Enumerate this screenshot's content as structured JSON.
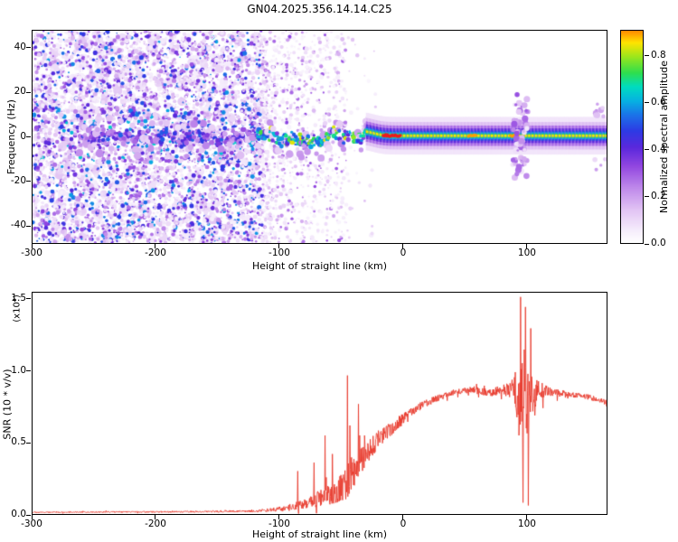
{
  "chart_data": [
    {
      "type": "heatmap",
      "title": "GN04.2025.356.14.14.C25",
      "xlabel": "Height of straight line (km)",
      "ylabel": "Frequency (Hz)",
      "colorbar_label": "Normalized spectral amplitude",
      "xlim": [
        -300,
        165
      ],
      "ylim": [
        -48,
        48
      ],
      "x_ticks": [
        -300,
        -200,
        -100,
        0,
        100
      ],
      "x_tick_labels": [
        "-300",
        "-200",
        "-100",
        "0",
        "100"
      ],
      "y_ticks": [
        40,
        20,
        0,
        -20,
        -40
      ],
      "y_tick_labels": [
        "40",
        "20",
        "0",
        "-20",
        "-40"
      ],
      "colorbar_ticks": [
        0,
        0.2,
        0.4,
        0.6,
        0.8
      ],
      "colorbar_tick_labels": [
        "0.0",
        "0.2",
        "0.4",
        "0.6",
        "0.8"
      ],
      "colorbar_range": [
        0,
        0.91
      ],
      "grid": false,
      "colormap_stops": [
        [
          0.0,
          "#ffffff"
        ],
        [
          0.05,
          "#f6eefc"
        ],
        [
          0.14,
          "#e2c4f4"
        ],
        [
          0.24,
          "#bd86ea"
        ],
        [
          0.33,
          "#9146e0"
        ],
        [
          0.41,
          "#5a28dc"
        ],
        [
          0.48,
          "#2e3ae4"
        ],
        [
          0.55,
          "#1b74e8"
        ],
        [
          0.61,
          "#06b2e2"
        ],
        [
          0.67,
          "#00dcc0"
        ],
        [
          0.73,
          "#2ede4e"
        ],
        [
          0.8,
          "#9ce61c"
        ],
        [
          0.86,
          "#ffe400"
        ],
        [
          0.91,
          "#ff8c00"
        ],
        [
          0.96,
          "#f62318"
        ],
        [
          1.0,
          "#cf0630"
        ]
      ],
      "texture": {
        "broadband_noise": {
          "x_range": [
            -300,
            -114
          ],
          "count": 5200
        },
        "noise_decay": {
          "x_range": [
            -114,
            -46
          ],
          "count": 900
        },
        "sparse_tail": {
          "x_range": [
            -114,
            -22
          ],
          "count": 220
        },
        "signal_band": {
          "x_range": [
            -262,
            -24
          ],
          "strong_from": -120,
          "center_hz": 0,
          "jitter_hz": 5
        },
        "carrier_stripe": {
          "x_range": [
            -30,
            165
          ],
          "center_hz": 0.5,
          "bump": {
            "amp": 2.0,
            "x": -33,
            "w": 12
          },
          "layers": [
            [
              8.5,
              0.07
            ],
            [
              6.2,
              0.15
            ],
            [
              4.6,
              0.28
            ],
            [
              3.3,
              0.4
            ],
            [
              2.3,
              0.5
            ],
            [
              1.6,
              0.6
            ],
            [
              1.0,
              0.72
            ],
            [
              0.55,
              0.86
            ]
          ],
          "red_segments": [
            [
              -16,
              -2
            ]
          ],
          "orange_segments": [
            [
              53,
              60
            ],
            [
              87,
              94
            ]
          ]
        },
        "disturbance": {
          "x": 95,
          "spread_x": 8,
          "spread_hz": 22
        }
      }
    },
    {
      "type": "line",
      "xlabel": "Height of straight line (km)",
      "ylabel": "SNR (10 * v/v)",
      "y_scale_note": "(x10⁴)",
      "xlim": [
        -300,
        165
      ],
      "ylim": [
        0,
        1.55
      ],
      "x_ticks": [
        -300,
        -200,
        -100,
        0,
        100
      ],
      "x_tick_labels": [
        "-300",
        "-200",
        "-100",
        "0",
        "100"
      ],
      "y_ticks": [
        0,
        0.5,
        1,
        1.5
      ],
      "y_tick_labels": [
        "0.0",
        "0.5",
        "1.0",
        "1.5"
      ],
      "grid": false,
      "series": [
        {
          "name": "snr",
          "color": "#e8392b",
          "envelope": [
            [
              -300,
              0.012,
              0.006
            ],
            [
              -200,
              0.015,
              0.008
            ],
            [
              -140,
              0.018,
              0.01
            ],
            [
              -115,
              0.022,
              0.012
            ],
            [
              -100,
              0.035,
              0.025
            ],
            [
              -90,
              0.05,
              0.04
            ],
            [
              -80,
              0.07,
              0.05
            ],
            [
              -70,
              0.1,
              0.08
            ],
            [
              -60,
              0.14,
              0.12
            ],
            [
              -52,
              0.17,
              0.14
            ],
            [
              -46,
              0.22,
              0.18
            ],
            [
              -40,
              0.3,
              0.18
            ],
            [
              -34,
              0.38,
              0.16
            ],
            [
              -28,
              0.44,
              0.12
            ],
            [
              -20,
              0.52,
              0.1
            ],
            [
              -12,
              0.58,
              0.08
            ],
            [
              -5,
              0.63,
              0.07
            ],
            [
              5,
              0.7,
              0.05
            ],
            [
              15,
              0.76,
              0.04
            ],
            [
              25,
              0.8,
              0.035
            ],
            [
              40,
              0.85,
              0.03
            ],
            [
              55,
              0.87,
              0.035
            ],
            [
              70,
              0.85,
              0.04
            ],
            [
              82,
              0.87,
              0.06
            ],
            [
              90,
              0.87,
              0.12
            ],
            [
              94,
              0.84,
              0.45
            ],
            [
              104,
              0.84,
              0.55
            ],
            [
              110,
              0.87,
              0.12
            ],
            [
              118,
              0.86,
              0.05
            ],
            [
              135,
              0.84,
              0.03
            ],
            [
              150,
              0.82,
              0.03
            ],
            [
              165,
              0.78,
              0.03
            ]
          ],
          "spikes": [
            [
              -85,
              0.3
            ],
            [
              -72,
              0.36
            ],
            [
              -63,
              0.55
            ],
            [
              -57,
              0.42
            ],
            [
              -45,
              0.97
            ],
            [
              -43,
              0.62
            ],
            [
              -36,
              0.77
            ],
            [
              -31,
              0.55
            ],
            [
              95.5,
              1.52
            ],
            [
              97.5,
              0.08
            ],
            [
              99.5,
              1.45
            ],
            [
              101.5,
              0.06
            ],
            [
              103.5,
              1.3
            ]
          ]
        }
      ]
    }
  ]
}
